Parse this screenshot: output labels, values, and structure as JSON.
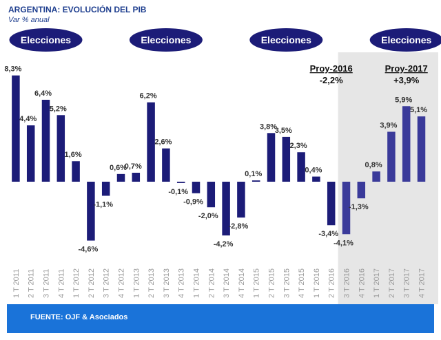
{
  "colors": {
    "bar": "#1c1c78",
    "bar_projected": "#3a3a9a",
    "projection_bg": "#e6e6e6",
    "ellipse": "#1c1c78",
    "source_bar": "#1a73d9",
    "title": "#1f3f8f"
  },
  "chart_data": {
    "type": "bar",
    "title": "ARGENTINA: EVOLUCIÓN DEL PIB",
    "subtitle": "Var % anual",
    "categories": [
      "1 T 2011",
      "2 T 2011",
      "3 T 2011",
      "4 T 2011",
      "1 T 2012",
      "2 T 2012",
      "3 T 2012",
      "4 T 2012",
      "1 T 2013",
      "2 T 2013",
      "3 T 2013",
      "4 T 2013",
      "1 T 2014",
      "2 T 2014",
      "3 T 2014",
      "4 T 2014",
      "1 T 2015",
      "2 T 2015",
      "3 T 2015",
      "4 T 2015",
      "1 T 2016",
      "2 T 2016",
      "3 T 2016",
      "4 T 2016",
      "1 T 2017",
      "2 T 2017",
      "3 T 2017",
      "4 T 2017"
    ],
    "values": [
      8.3,
      4.4,
      6.4,
      5.2,
      1.6,
      -4.6,
      -1.1,
      0.6,
      0.7,
      6.2,
      2.6,
      -0.1,
      -0.9,
      -2.0,
      -4.2,
      -2.8,
      0.1,
      3.8,
      3.5,
      2.3,
      0.4,
      -3.4,
      -4.1,
      -1.3,
      0.8,
      3.9,
      5.9,
      5.1
    ],
    "value_labels": [
      "8,3%",
      "4,4%",
      "6,4%",
      "5,2%",
      "1,6%",
      "-4,6%",
      "-1,1%",
      "0,6%",
      "0,7%",
      "6,2%",
      "2,6%",
      "-0,1%",
      "-0,9%",
      "-2,0%",
      "-4,2%",
      "-2,8%",
      "0,1%",
      "3,8%",
      "3,5%",
      "2,3%",
      "0,4%",
      "-3,4%",
      "-4,1%",
      "-1,3%",
      "0,8%",
      "3,9%",
      "5,9%",
      "5,1%"
    ],
    "projected_from_index": 22,
    "ylim": [
      -5.5,
      9
    ],
    "grid": false,
    "annotations": {
      "elections": [
        {
          "label": "Elecciones",
          "category_index": 2
        },
        {
          "label": "Elecciones",
          "category_index": 10
        },
        {
          "label": "Elecciones",
          "category_index": 18
        },
        {
          "label": "Elecciones",
          "category_index": 26
        }
      ],
      "projections": [
        {
          "line1": "Proy-2016",
          "line2": "-2,2%",
          "category_index": 21
        },
        {
          "line1": "Proy-2017",
          "line2": "+3,9%",
          "category_index": 26
        }
      ]
    }
  },
  "footer": {
    "source": "FUENTE: OJF & Asociados"
  }
}
